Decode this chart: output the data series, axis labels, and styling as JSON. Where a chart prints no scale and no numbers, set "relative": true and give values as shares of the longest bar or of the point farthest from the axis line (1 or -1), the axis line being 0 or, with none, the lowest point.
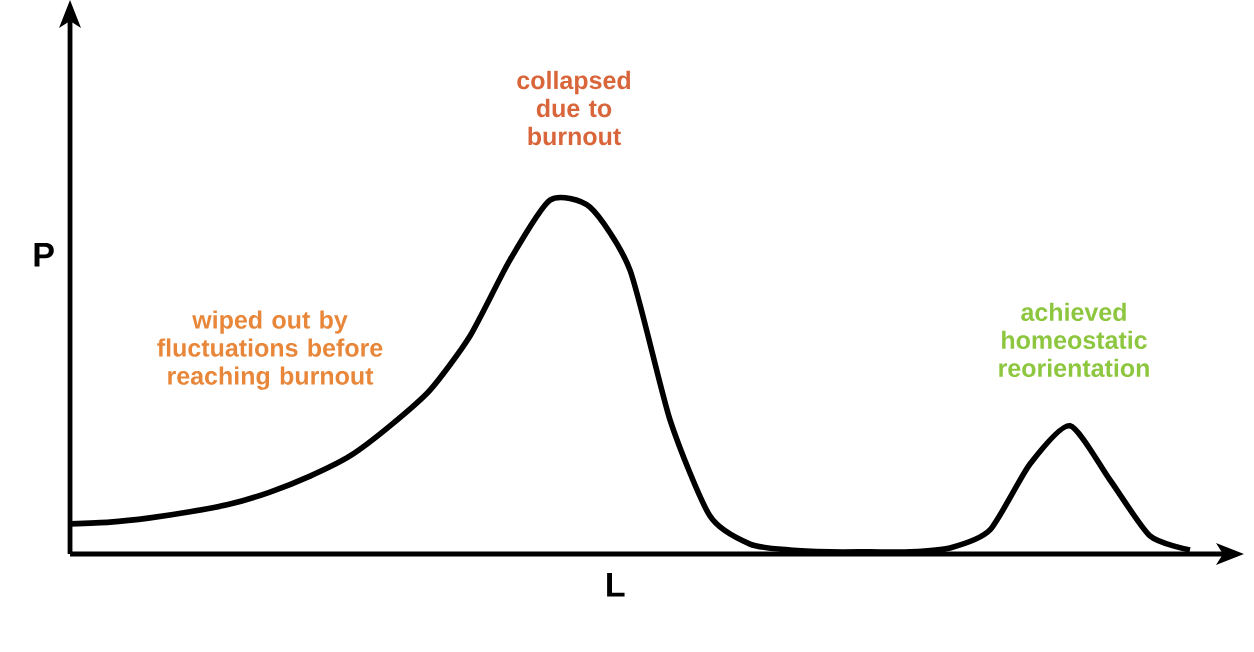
{
  "chart_data": {
    "type": "line",
    "relative": true,
    "xlabel": "L",
    "ylabel": "P",
    "color": "#000000",
    "marker": "none",
    "categories": [
      null,
      null,
      null,
      null,
      null,
      null,
      null,
      null,
      null,
      null,
      null,
      null,
      null,
      null,
      null,
      null,
      null,
      null,
      null,
      null,
      null,
      null,
      null,
      null,
      null,
      null,
      null,
      null,
      null
    ],
    "values": [
      0.085,
      0.09,
      0.102,
      0.119,
      0.141,
      0.175,
      0.22,
      0.277,
      0.362,
      0.463,
      0.616,
      0.831,
      1.0,
      0.98,
      0.802,
      0.379,
      0.107,
      0.028,
      0.011,
      0.006,
      0.006,
      0.006,
      0.017,
      0.068,
      0.254,
      0.362,
      0.209,
      0.051,
      0.011
    ],
    "annotations": [
      "wiped out by fluctuations before reaching burnout",
      "collapsed due to burnout",
      "achieved homeostatic reorientation"
    ]
  }
}
